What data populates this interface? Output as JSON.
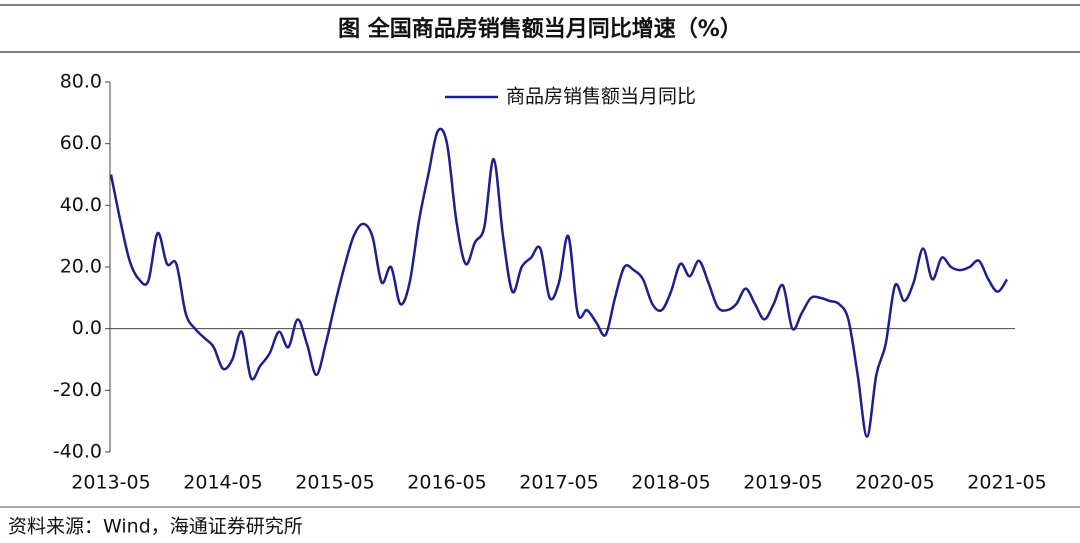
{
  "chart_data": {
    "type": "line",
    "title": "图  全国商品房销售额当月同比增速（%）",
    "source": "资料来源：Wind，海通证券研究所",
    "categories": [
      "2013-05",
      null,
      null,
      null,
      null,
      null,
      null,
      null,
      null,
      null,
      null,
      null,
      "2014-05",
      null,
      null,
      null,
      null,
      null,
      null,
      null,
      null,
      null,
      null,
      null,
      "2015-05",
      null,
      null,
      null,
      null,
      null,
      null,
      null,
      null,
      null,
      null,
      null,
      "2016-05",
      null,
      null,
      null,
      null,
      null,
      null,
      null,
      null,
      null,
      null,
      null,
      "2017-05",
      null,
      null,
      null,
      null,
      null,
      null,
      null,
      null,
      null,
      null,
      null,
      "2018-05",
      null,
      null,
      null,
      null,
      null,
      null,
      null,
      null,
      null,
      null,
      null,
      "2019-05",
      null,
      null,
      null,
      null,
      null,
      null,
      null,
      null,
      null,
      null,
      null,
      "2020-05",
      null,
      null,
      null,
      null,
      null,
      null,
      null,
      null,
      null,
      null,
      null,
      "2021-05"
    ],
    "series": [
      {
        "name": "商品房销售额当月同比",
        "color": "#1f1f8c",
        "values": [
          50,
          35,
          22,
          16,
          15.5,
          31,
          21,
          21,
          5,
          0,
          -3,
          -6,
          -13,
          -10,
          -1,
          -16,
          -12,
          -8,
          -1,
          -6,
          3,
          -5,
          -15,
          -5,
          8,
          20,
          30,
          34,
          30,
          15,
          20,
          8,
          15,
          35,
          50,
          64,
          60,
          35,
          21,
          28,
          33,
          55,
          30,
          12,
          20,
          23,
          26,
          10,
          15,
          30,
          5,
          6,
          2,
          -2,
          10,
          20,
          19,
          16,
          8,
          6,
          12,
          21,
          17,
          22,
          15,
          7,
          6,
          8,
          13,
          8,
          3,
          8,
          14,
          0,
          5,
          10,
          10,
          9,
          8,
          3,
          -15,
          -35,
          -15,
          -5,
          14,
          9,
          15,
          26,
          16,
          23,
          20,
          19,
          20,
          22,
          16,
          12,
          16
        ]
      }
    ],
    "ylim": [
      -40,
      80
    ],
    "yticks": [
      {
        "value": -40,
        "label": "-40.0"
      },
      {
        "value": -20,
        "label": "-20.0"
      },
      {
        "value": 0,
        "label": "0.0"
      },
      {
        "value": 20,
        "label": "20.0"
      },
      {
        "value": 40,
        "label": "40.0"
      },
      {
        "value": 60,
        "label": "60.0"
      },
      {
        "value": 80,
        "label": "80.0"
      }
    ],
    "legend": "top"
  }
}
